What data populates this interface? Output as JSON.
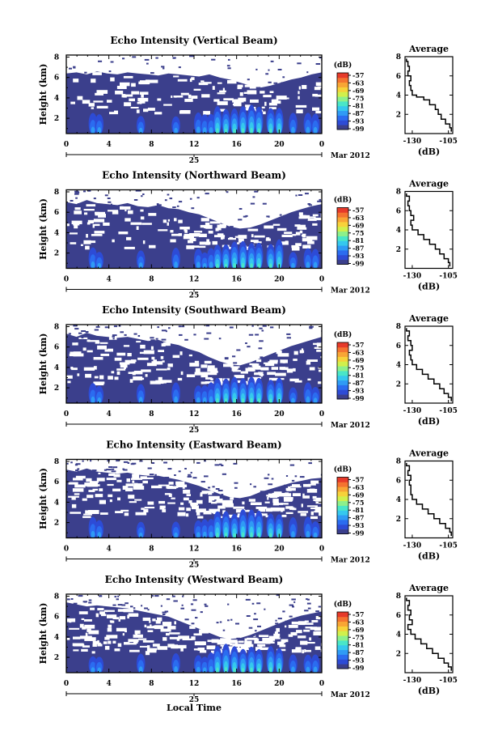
{
  "figure": {
    "xlabel": "Local Time",
    "date_day": "25",
    "date_suffix": "Mar 2012",
    "colorbar_unit": "(dB)",
    "colorbar_ticks": [
      "-57",
      "-63",
      "-69",
      "-75",
      "-81",
      "-87",
      "-93",
      "-99"
    ],
    "avg_title": "Average",
    "avg_xlabel": "(dB)",
    "avg_xticks": [
      "-130",
      "-105"
    ],
    "colormap": [
      "#3b3f8c",
      "#2d4bd6",
      "#2b6cf0",
      "#2f9bf5",
      "#35c8ee",
      "#49e6c8",
      "#8df08b",
      "#d1f04c",
      "#f7d23a",
      "#f8a535",
      "#f47330",
      "#e63a2a"
    ],
    "gap_color": "#ffffff",
    "line_color": "#000000"
  },
  "chart_data": [
    {
      "type": "heatmap",
      "title": "Echo Intensity (Vertical Beam)",
      "ylabel": "Height (km)",
      "x_ticks": [
        "0",
        "4",
        "8",
        "12",
        "16",
        "20",
        "0"
      ],
      "y_ticks": [
        "2",
        "4",
        "6",
        "8"
      ],
      "xlim": [
        0,
        24
      ],
      "ylim": [
        0.5,
        8.2
      ],
      "colorbar_range": [
        -99,
        -57
      ],
      "cloud_top_km": [
        6.4,
        6.5,
        6.3,
        6.6,
        6.4,
        6.3,
        6.5,
        6.4,
        6.3,
        6.2,
        6.4,
        6.3,
        6.2,
        6.1,
        6.3,
        6.0,
        5.8,
        5.5,
        5.2,
        5.0,
        5.2,
        5.5,
        5.8,
        6.0,
        6.3,
        6.5
      ],
      "average_profile": {
        "title": "Average",
        "xlabel": "(dB)",
        "x_range": [
          -135,
          -102
        ],
        "ylim": [
          0,
          8
        ],
        "height_km": [
          0.2,
          0.6,
          1.0,
          1.5,
          2.0,
          2.5,
          3.0,
          3.5,
          3.8,
          4.0,
          4.5,
          5.0,
          5.5,
          6.0,
          6.5,
          7.0,
          7.5,
          7.8
        ],
        "value_db": [
          -103,
          -104,
          -107,
          -110,
          -112,
          -114,
          -118,
          -122,
          -127,
          -130,
          -131,
          -132,
          -131,
          -133,
          -132,
          -133,
          -134,
          -134
        ]
      }
    },
    {
      "type": "heatmap",
      "title": "Echo Intensity (Northward Beam)",
      "ylabel": "Height (km)",
      "x_ticks": [
        "0",
        "4",
        "8",
        "12",
        "16",
        "20",
        "0"
      ],
      "y_ticks": [
        "2",
        "4",
        "6",
        "8"
      ],
      "xlim": [
        0,
        24
      ],
      "ylim": [
        0.5,
        8.2
      ],
      "colorbar_range": [
        -99,
        -57
      ],
      "cloud_top_km": [
        7.0,
        6.8,
        7.2,
        6.9,
        6.8,
        6.7,
        6.9,
        6.6,
        6.5,
        6.7,
        6.4,
        6.3,
        6.0,
        5.8,
        5.4,
        5.0,
        4.6,
        4.4,
        4.5,
        4.8,
        5.2,
        5.6,
        6.0,
        6.3,
        6.6,
        6.8
      ],
      "average_profile": {
        "title": "Average",
        "xlabel": "(dB)",
        "x_range": [
          -135,
          -102
        ],
        "ylim": [
          0,
          8
        ],
        "height_km": [
          0.2,
          0.6,
          1.0,
          1.5,
          2.0,
          2.5,
          3.0,
          3.5,
          4.0,
          4.5,
          5.0,
          5.5,
          6.0,
          6.5,
          7.0,
          7.5,
          7.8
        ],
        "value_db": [
          -104,
          -105,
          -108,
          -111,
          -114,
          -118,
          -122,
          -126,
          -130,
          -131,
          -129,
          -131,
          -132,
          -133,
          -132,
          -134,
          -134
        ]
      }
    },
    {
      "type": "heatmap",
      "title": "Echo Intensity (Southward Beam)",
      "ylabel": "Height (km)",
      "x_ticks": [
        "0",
        "4",
        "8",
        "12",
        "16",
        "20",
        "0"
      ],
      "y_ticks": [
        "2",
        "4",
        "6",
        "8"
      ],
      "xlim": [
        0,
        24
      ],
      "ylim": [
        0.5,
        8.2
      ],
      "colorbar_range": [
        -99,
        -57
      ],
      "cloud_top_km": [
        7.3,
        7.0,
        7.4,
        7.1,
        7.0,
        6.9,
        7.0,
        6.8,
        6.6,
        6.7,
        6.4,
        6.2,
        5.8,
        5.5,
        5.0,
        4.6,
        4.3,
        4.2,
        4.5,
        4.9,
        5.3,
        5.7,
        6.1,
        6.4,
        6.7,
        7.0
      ],
      "average_profile": {
        "title": "Average",
        "xlabel": "(dB)",
        "x_range": [
          -135,
          -102
        ],
        "ylim": [
          0,
          8
        ],
        "height_km": [
          0.2,
          0.6,
          1.0,
          1.5,
          2.0,
          2.5,
          3.0,
          3.5,
          4.0,
          4.5,
          5.0,
          5.5,
          6.0,
          6.5,
          7.0,
          7.5,
          7.8
        ],
        "value_db": [
          -103,
          -105,
          -108,
          -111,
          -115,
          -119,
          -123,
          -127,
          -130,
          -131,
          -132,
          -130,
          -131,
          -133,
          -132,
          -134,
          -134
        ]
      }
    },
    {
      "type": "heatmap",
      "title": "Echo Intensity (Eastward Beam)",
      "ylabel": "Height (km)",
      "x_ticks": [
        "0",
        "4",
        "8",
        "12",
        "16",
        "20",
        "0"
      ],
      "y_ticks": [
        "2",
        "4",
        "6",
        "8"
      ],
      "xlim": [
        0,
        24
      ],
      "ylim": [
        0.5,
        8.2
      ],
      "colorbar_range": [
        -99,
        -57
      ],
      "cloud_top_km": [
        7.2,
        7.0,
        7.3,
        7.0,
        6.9,
        6.8,
        6.9,
        6.7,
        6.6,
        6.6,
        6.4,
        6.2,
        5.9,
        5.6,
        5.2,
        4.8,
        4.5,
        4.4,
        4.6,
        5.0,
        5.3,
        5.6,
        5.9,
        6.1,
        6.3,
        6.4
      ],
      "average_profile": {
        "title": "Average",
        "xlabel": "(dB)",
        "x_range": [
          -135,
          -102
        ],
        "ylim": [
          0,
          8
        ],
        "height_km": [
          0.2,
          0.6,
          1.0,
          1.5,
          2.0,
          2.5,
          3.0,
          3.5,
          4.0,
          4.5,
          5.0,
          5.5,
          6.0,
          6.5,
          7.0,
          7.5,
          7.8
        ],
        "value_db": [
          -103,
          -104,
          -107,
          -111,
          -115,
          -119,
          -123,
          -127,
          -130,
          -131,
          -131,
          -132,
          -131,
          -133,
          -132,
          -134,
          -134
        ]
      }
    },
    {
      "type": "heatmap",
      "title": "Echo Intensity (Westward Beam)",
      "ylabel": "Height (km)",
      "x_ticks": [
        "0",
        "4",
        "8",
        "12",
        "16",
        "20",
        "0"
      ],
      "y_ticks": [
        "2",
        "4",
        "6",
        "8"
      ],
      "xlim": [
        0,
        24
      ],
      "ylim": [
        0.5,
        8.2
      ],
      "colorbar_range": [
        -99,
        -57
      ],
      "cloud_top_km": [
        7.4,
        7.2,
        7.0,
        7.1,
        7.0,
        6.9,
        6.8,
        6.6,
        6.4,
        6.2,
        6.0,
        5.6,
        5.2,
        4.8,
        4.4,
        4.0,
        3.8,
        3.9,
        4.2,
        4.6,
        5.0,
        5.4,
        5.8,
        6.1,
        6.3,
        6.5
      ],
      "average_profile": {
        "title": "Average",
        "xlabel": "(dB)",
        "x_range": [
          -135,
          -102
        ],
        "ylim": [
          0,
          8
        ],
        "height_km": [
          0.2,
          0.6,
          1.0,
          1.5,
          2.0,
          2.5,
          3.0,
          3.5,
          4.0,
          4.5,
          5.0,
          5.5,
          6.0,
          6.5,
          7.0,
          7.5,
          7.8
        ],
        "value_db": [
          -103,
          -105,
          -108,
          -112,
          -116,
          -120,
          -124,
          -128,
          -131,
          -133,
          -130,
          -132,
          -131,
          -133,
          -132,
          -134,
          -134
        ]
      }
    }
  ]
}
